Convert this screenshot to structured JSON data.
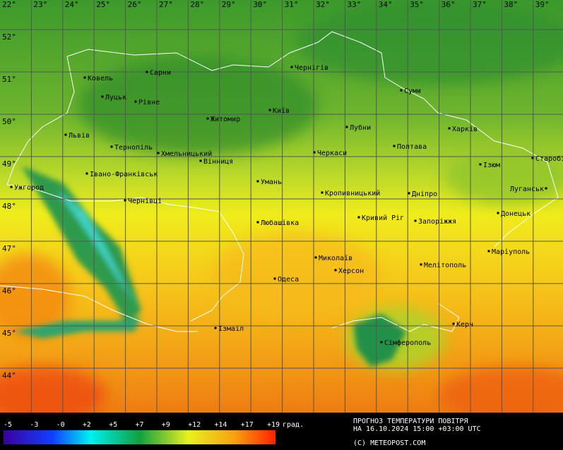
{
  "map": {
    "longitude_labels": [
      "22°",
      "23°",
      "24°",
      "25°",
      "26°",
      "27°",
      "28°",
      "29°",
      "30°",
      "31°",
      "32°",
      "33°",
      "34°",
      "35°",
      "36°",
      "37°",
      "38°",
      "39°"
    ],
    "latitude_labels": [
      "52°",
      "51°",
      "50°",
      "49°",
      "48°",
      "47°",
      "46°",
      "45°",
      "44°"
    ],
    "cities": [
      "Ковель",
      "Сарни",
      "Чернігів",
      "Луцьк",
      "Рівне",
      "Суми",
      "Київ",
      "Житомир",
      "Лубни",
      "Харків",
      "Львів",
      "Тернопіль",
      "Хмельницький",
      "Полтава",
      "Черкаси",
      "Вінниця",
      "Ізюм",
      "Старобільськ",
      "Івано-Франківськ",
      "Ужгород",
      "Умань",
      "Кропивницький",
      "Дніпро",
      "Луганськ",
      "Чернівці",
      "Донецьк",
      "Кривий Ріг",
      "Запоріжжя",
      "Любашівка",
      "Маріуполь",
      "Миколаїв",
      "Мелітополь",
      "Херсон",
      "Одеса",
      "Керч",
      "Ізмаїл",
      "Сімферополь"
    ]
  },
  "legend": {
    "labels": [
      "-5",
      "-3",
      "-0",
      "+2",
      "+5",
      "+7",
      "+9",
      "+12",
      "+14",
      "+17",
      "+19"
    ],
    "unit": "град."
  },
  "footer": {
    "title": "ПРОГНОЗ ТЕМПЕРАТУРИ ПОВІТРЯ",
    "date": "НА 16.10.2024 15:00 +03:00 UTC",
    "copyright": "(C) METEOPOST.COM"
  }
}
